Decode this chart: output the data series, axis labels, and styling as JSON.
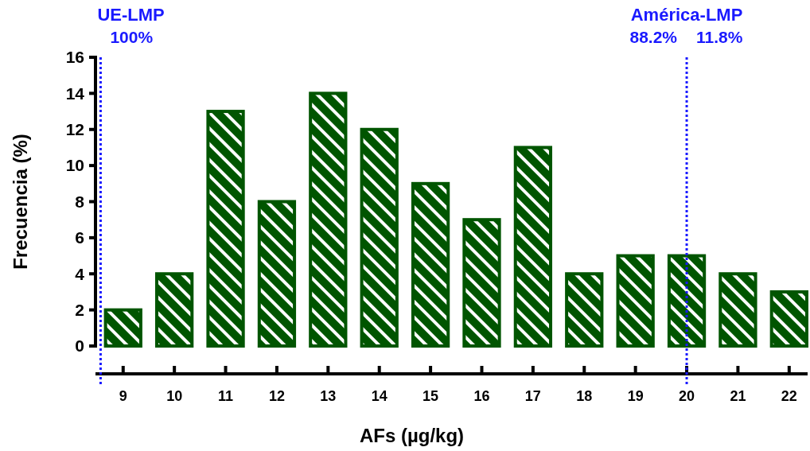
{
  "chart_data": {
    "type": "bar",
    "xlabel": "AFs (µg/kg)",
    "ylabel": "Frecuencia (%)",
    "x": [
      9,
      10,
      11,
      12,
      13,
      14,
      15,
      16,
      17,
      18,
      19,
      20,
      21,
      22
    ],
    "values": [
      2,
      4,
      13,
      8,
      14,
      12,
      9,
      7,
      11,
      4,
      5,
      5,
      4,
      3
    ],
    "color": "#005500",
    "xlim": [
      8.46,
      22.36
    ],
    "xticks": [
      9,
      10,
      11,
      12,
      13,
      14,
      15,
      16,
      17,
      18,
      19,
      20,
      21,
      22
    ],
    "ylim": [
      0,
      16
    ],
    "yticks": [
      0,
      2,
      4,
      6,
      8,
      10,
      12,
      14,
      16
    ],
    "grid": false,
    "ref_lines": [
      {
        "axis": "x",
        "value": 8.56,
        "label": "UE-LMP",
        "color": "#1a1aff",
        "line_style": "dotted"
      },
      {
        "axis": "x",
        "value": 20,
        "label": "América-LMP",
        "color": "#1a1aff",
        "line_style": "dotted"
      }
    ],
    "annotations": [
      "100%",
      "88.2%",
      "11.8%"
    ]
  }
}
